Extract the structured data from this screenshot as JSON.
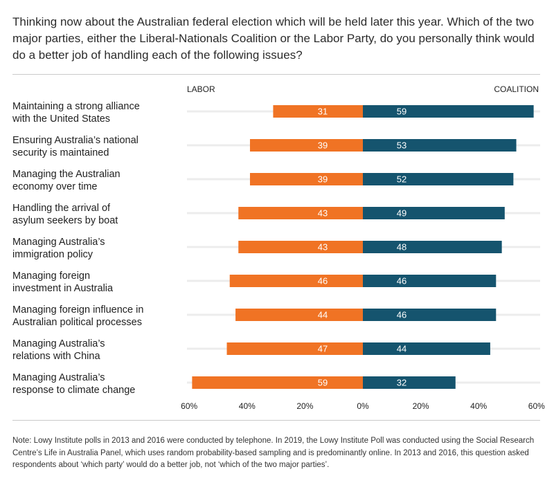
{
  "question": "Thinking now about the Australian federal election which will be held later this year. Which of the two major parties, either the Liberal-Nationals Coalition or the Labor Party, do you personally think would do a better job of handling each of the following issues?",
  "note": "Note: Lowy Institute polls in 2013 and 2016 were conducted by telephone. In 2019, the Lowy Institute Poll was conducted using the Social Research Centre’s Life in Australia Panel, which uses random probability-based sampling and is predominantly online. In 2013 and 2016, this question asked respondents about ‘which party’ would do a better job, not ‘which of the two major parties’.",
  "colors": {
    "labor": "#f07324",
    "coalition": "#15546e",
    "track": "#ececec",
    "rule": "#c9c9c9",
    "text": "#222222"
  },
  "chart_data": {
    "type": "bar",
    "orientation": "horizontal-diverging",
    "left_label": "LABOR",
    "right_label": "COALITION",
    "x_ticks": [
      "60%",
      "40%",
      "20%",
      "0%",
      "20%",
      "40%",
      "60%"
    ],
    "xlim": [
      -60,
      60
    ],
    "categories": [
      [
        "Maintaining a strong alliance",
        "with the United States"
      ],
      [
        "Ensuring Australia’s national",
        "security is maintained"
      ],
      [
        "Managing the Australian",
        "economy over time"
      ],
      [
        "Handling the arrival of",
        "asylum seekers by boat"
      ],
      [
        "Managing Australia’s",
        "immigration policy"
      ],
      [
        "Managing foreign",
        "investment in Australia"
      ],
      [
        "Managing foreign influence in",
        "Australian political processes"
      ],
      [
        "Managing Australia’s",
        "relations with China"
      ],
      [
        "Managing Australia’s",
        "response to climate change"
      ]
    ],
    "series": [
      {
        "name": "LABOR",
        "values": [
          31,
          39,
          39,
          43,
          43,
          46,
          44,
          47,
          59
        ]
      },
      {
        "name": "COALITION",
        "values": [
          59,
          53,
          52,
          49,
          48,
          46,
          46,
          44,
          32
        ]
      }
    ]
  }
}
